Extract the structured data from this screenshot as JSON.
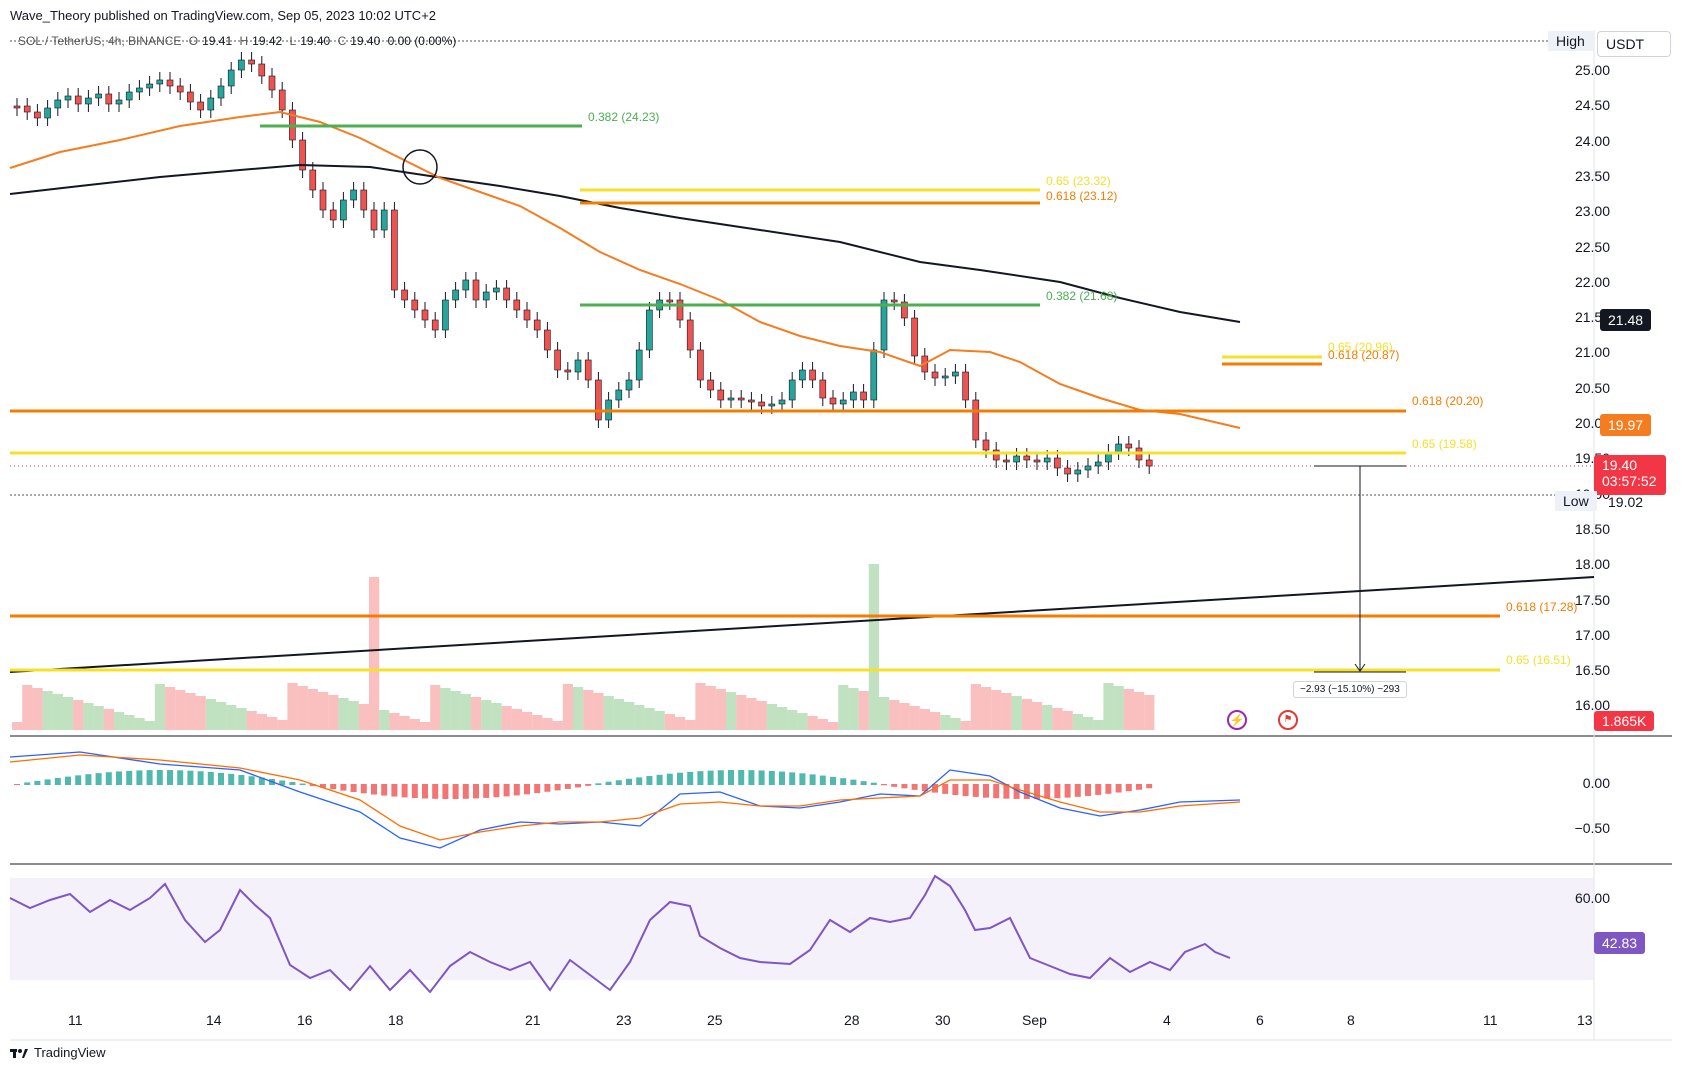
{
  "header": {
    "publish_text": "Wave_Theory published on TradingView.com, Sep 05, 2023 10:02 UTC+2"
  },
  "legend": {
    "symbol": "SOL / TetherUS, 4h, BINANCE",
    "o_label": "O",
    "o_value": "19.41",
    "h_label": "H",
    "h_value": "19.42",
    "l_label": "L",
    "l_value": "19.40",
    "c_label": "C",
    "c_value": "19.40",
    "change": "0.00 (0.00%)"
  },
  "price_axis": {
    "currency": "USDT",
    "high_label": "High",
    "low_label": "Low",
    "ticks": [
      "25.00",
      "24.50",
      "24.00",
      "23.50",
      "23.00",
      "22.50",
      "22.00",
      "21.50",
      "21.00",
      "20.50",
      "20.00",
      "19.50",
      "19.00",
      "18.50",
      "18.00",
      "17.50",
      "17.00",
      "16.50",
      "16.00"
    ],
    "tag_ma200": "21.48",
    "tag_ma50": "19.97",
    "tag_price": "19.40",
    "tag_countdown": "03:57:52",
    "tag_low": "19.02",
    "tag_volume": "1.865K",
    "colors": {
      "ma50": "#f57c1f",
      "ma200": "#131722",
      "up": "#26a69a",
      "down": "#ef5350",
      "price_tag": "#f23645"
    }
  },
  "macd_axis": {
    "ticks": [
      "0.00",
      "−0.50"
    ]
  },
  "rsi_axis": {
    "ticks": [
      "60.00"
    ],
    "tag_value": "42.83",
    "color": "#7e57c2"
  },
  "time_axis": {
    "labels": [
      "11",
      "14",
      "16",
      "18",
      "21",
      "23",
      "25",
      "28",
      "30",
      "Sep",
      "4",
      "6",
      "8",
      "11",
      "13"
    ]
  },
  "fib_levels": [
    {
      "text": "0.382 (24.23)",
      "color": "#4caf50"
    },
    {
      "text": "0.65 (23.32)",
      "color": "#f5e02a"
    },
    {
      "text": "0.618 (23.12)",
      "color": "#f57c00"
    },
    {
      "text": "0.382 (21.68)",
      "color": "#4caf50"
    },
    {
      "text": "0.65 (20.96)",
      "color": "#f5e02a"
    },
    {
      "text": "0.618 (20.87)",
      "color": "#f57c00"
    },
    {
      "text": "0.618 (20.20)",
      "color": "#f57c00"
    },
    {
      "text": "0.65 (19.58)",
      "color": "#f5e02a"
    },
    {
      "text": "0.618 (17.28)",
      "color": "#f57c00"
    },
    {
      "text": "0.65 (16.51)",
      "color": "#f5e02a"
    }
  ],
  "measure": {
    "text": "−2.93 (−15.10%) −293"
  },
  "footer": {
    "brand": "TradingView"
  }
}
